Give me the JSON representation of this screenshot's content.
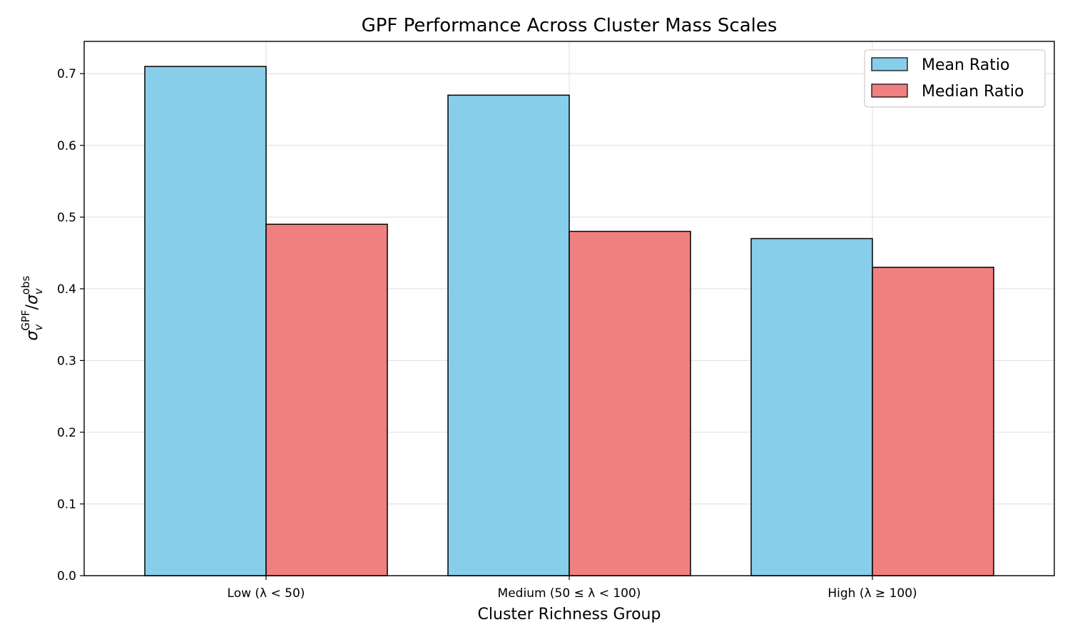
{
  "chart_data": {
    "type": "bar",
    "title": "GPF Performance Across Cluster Mass Scales",
    "xlabel": "Cluster Richness Group",
    "ylabel": {
      "sigma": "σ",
      "v": "v",
      "sup_num": "GPF",
      "slash": "/",
      "sup_den": "obs"
    },
    "categories": [
      "Low (λ < 50)",
      "Medium (50 ≤ λ < 100)",
      "High (λ ≥ 100)"
    ],
    "series": [
      {
        "name": "Mean Ratio",
        "values": [
          0.71,
          0.67,
          0.47
        ],
        "color": "#87CEEB"
      },
      {
        "name": "Median Ratio",
        "values": [
          0.49,
          0.48,
          0.43
        ],
        "color": "#F08080"
      }
    ],
    "ylim": [
      0,
      0.745
    ],
    "yticks": [
      0.0,
      0.1,
      0.2,
      0.3,
      0.4,
      0.5,
      0.6,
      0.7
    ],
    "ytick_labels": [
      "0.0",
      "0.1",
      "0.2",
      "0.3",
      "0.4",
      "0.5",
      "0.6",
      "0.7"
    ],
    "grid": true,
    "legend": "top-right",
    "edge_color": "#000000"
  }
}
